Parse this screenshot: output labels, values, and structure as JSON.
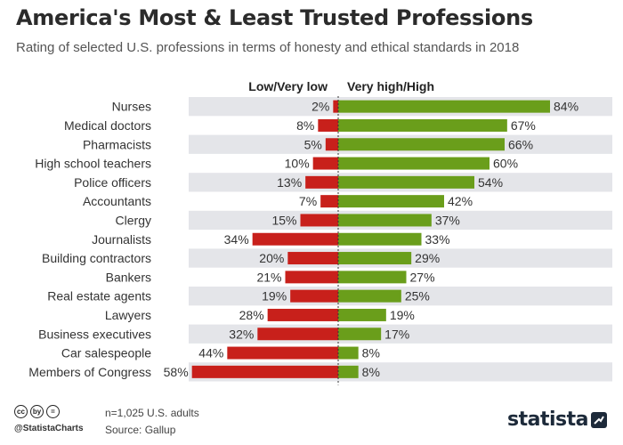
{
  "title": "America's Most & Least Trusted Professions",
  "subtitle": "Rating of selected U.S. professions in terms of honesty and ethical standards in 2018",
  "footer": {
    "sample": "n=1,025 U.S. adults",
    "source": "Source: Gallup",
    "handle": "@StatistaCharts",
    "brand": "statista",
    "license_icons": [
      "cc",
      "by",
      "="
    ]
  },
  "colors": {
    "low": "#c8201b",
    "high": "#6a9e1b",
    "row_band": "#e4e5e9",
    "axis": "#333333"
  },
  "chart_data": {
    "type": "bar",
    "orientation": "horizontal-diverging",
    "categories": [
      "Nurses",
      "Medical doctors",
      "Pharmacists",
      "High school teachers",
      "Police officers",
      "Accountants",
      "Clergy",
      "Journalists",
      "Building contractors",
      "Bankers",
      "Real estate agents",
      "Lawyers",
      "Business executives",
      "Car salespeople",
      "Members of Congress"
    ],
    "series": [
      {
        "name": "Low/Very low",
        "values": [
          2,
          8,
          5,
          10,
          13,
          7,
          15,
          34,
          20,
          21,
          19,
          28,
          32,
          44,
          58
        ]
      },
      {
        "name": "Very high/High",
        "values": [
          84,
          67,
          66,
          60,
          54,
          42,
          37,
          33,
          29,
          27,
          25,
          19,
          17,
          8,
          8
        ]
      }
    ],
    "value_suffix": "%",
    "legend_position": "top",
    "grid": false
  }
}
